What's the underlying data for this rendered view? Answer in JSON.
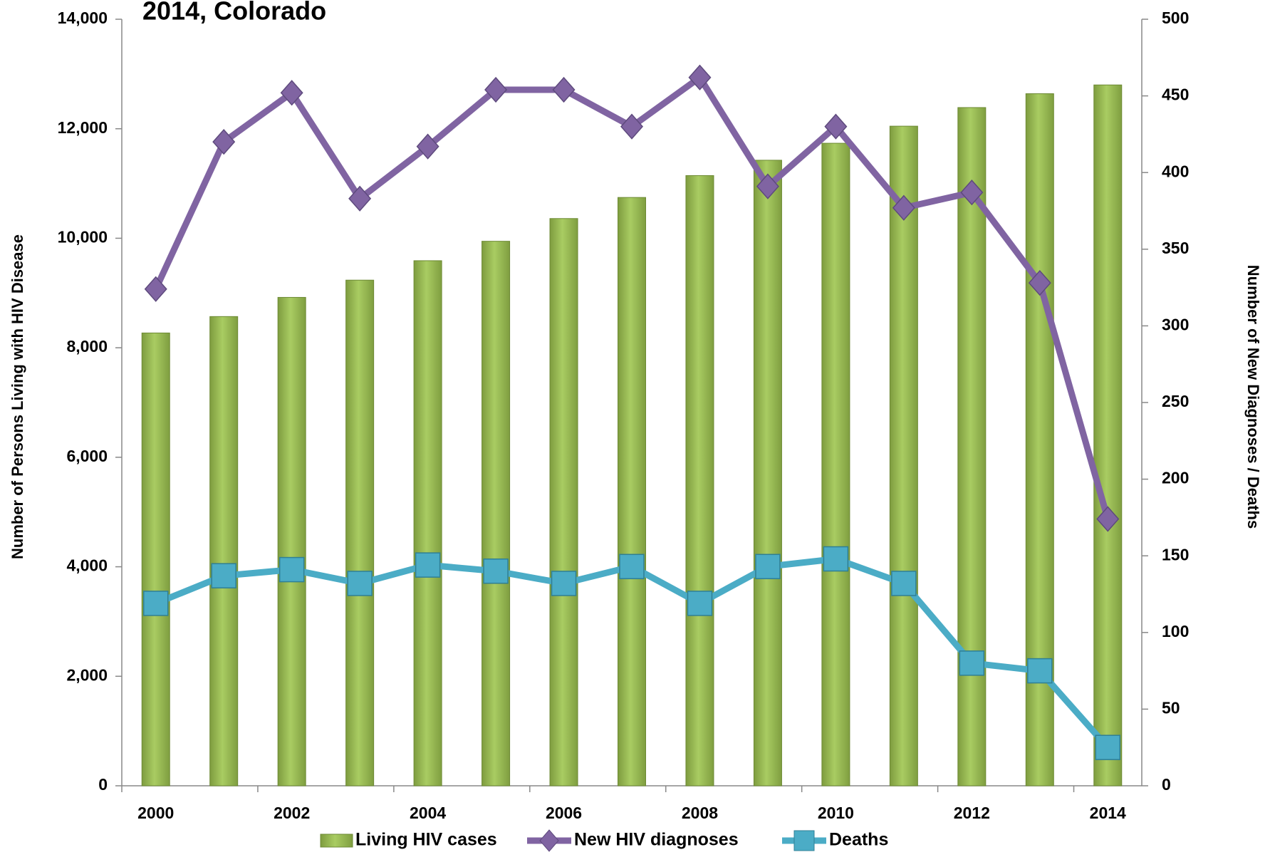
{
  "chart_data": {
    "type": "bar-line",
    "title": "2014, Colorado",
    "categories": [
      "2000",
      null,
      "2002",
      null,
      "2004",
      null,
      "2006",
      null,
      "2008",
      null,
      "2010",
      null,
      "2012",
      null,
      "2014"
    ],
    "series": [
      {
        "name": "Living HIV cases",
        "type": "bar",
        "color": "#9bbb59",
        "axis": "y",
        "values": [
          8270,
          8570,
          8920,
          9235,
          9590,
          9945,
          10360,
          10745,
          11145,
          11425,
          11735,
          12047,
          12387,
          12640,
          12800
        ]
      },
      {
        "name": "New HIV diagnoses",
        "type": "line",
        "color": "#8064a2",
        "axis": "y2",
        "values": [
          324,
          420,
          452,
          383,
          417,
          454,
          454,
          430,
          462,
          391,
          430,
          377,
          387,
          328,
          174
        ]
      },
      {
        "name": "Deaths",
        "type": "line",
        "color": "#4bacc6",
        "axis": "y2",
        "values": [
          119,
          137,
          141,
          132,
          144,
          140,
          132,
          143,
          119,
          143,
          148,
          132,
          80,
          75,
          25
        ]
      }
    ],
    "ylabel": "Number of Persons Living with HIV Disease",
    "y2label": "Number of New Diagnoses / Deaths",
    "ylim": [
      0,
      14000
    ],
    "yticks": [
      {
        "value": 0,
        "label": "0"
      },
      {
        "value": 2000,
        "label": "2,000"
      },
      {
        "value": 4000,
        "label": "4,000"
      },
      {
        "value": 6000,
        "label": "6,000"
      },
      {
        "value": 8000,
        "label": "8,000"
      },
      {
        "value": 10000,
        "label": "10,000"
      },
      {
        "value": 12000,
        "label": "12,000"
      },
      {
        "value": 14000,
        "label": "14,000"
      }
    ],
    "y2lim": [
      0,
      500
    ],
    "y2ticks": [
      0,
      50,
      100,
      150,
      200,
      250,
      300,
      350,
      400,
      450,
      500
    ],
    "legend": "bottom"
  }
}
